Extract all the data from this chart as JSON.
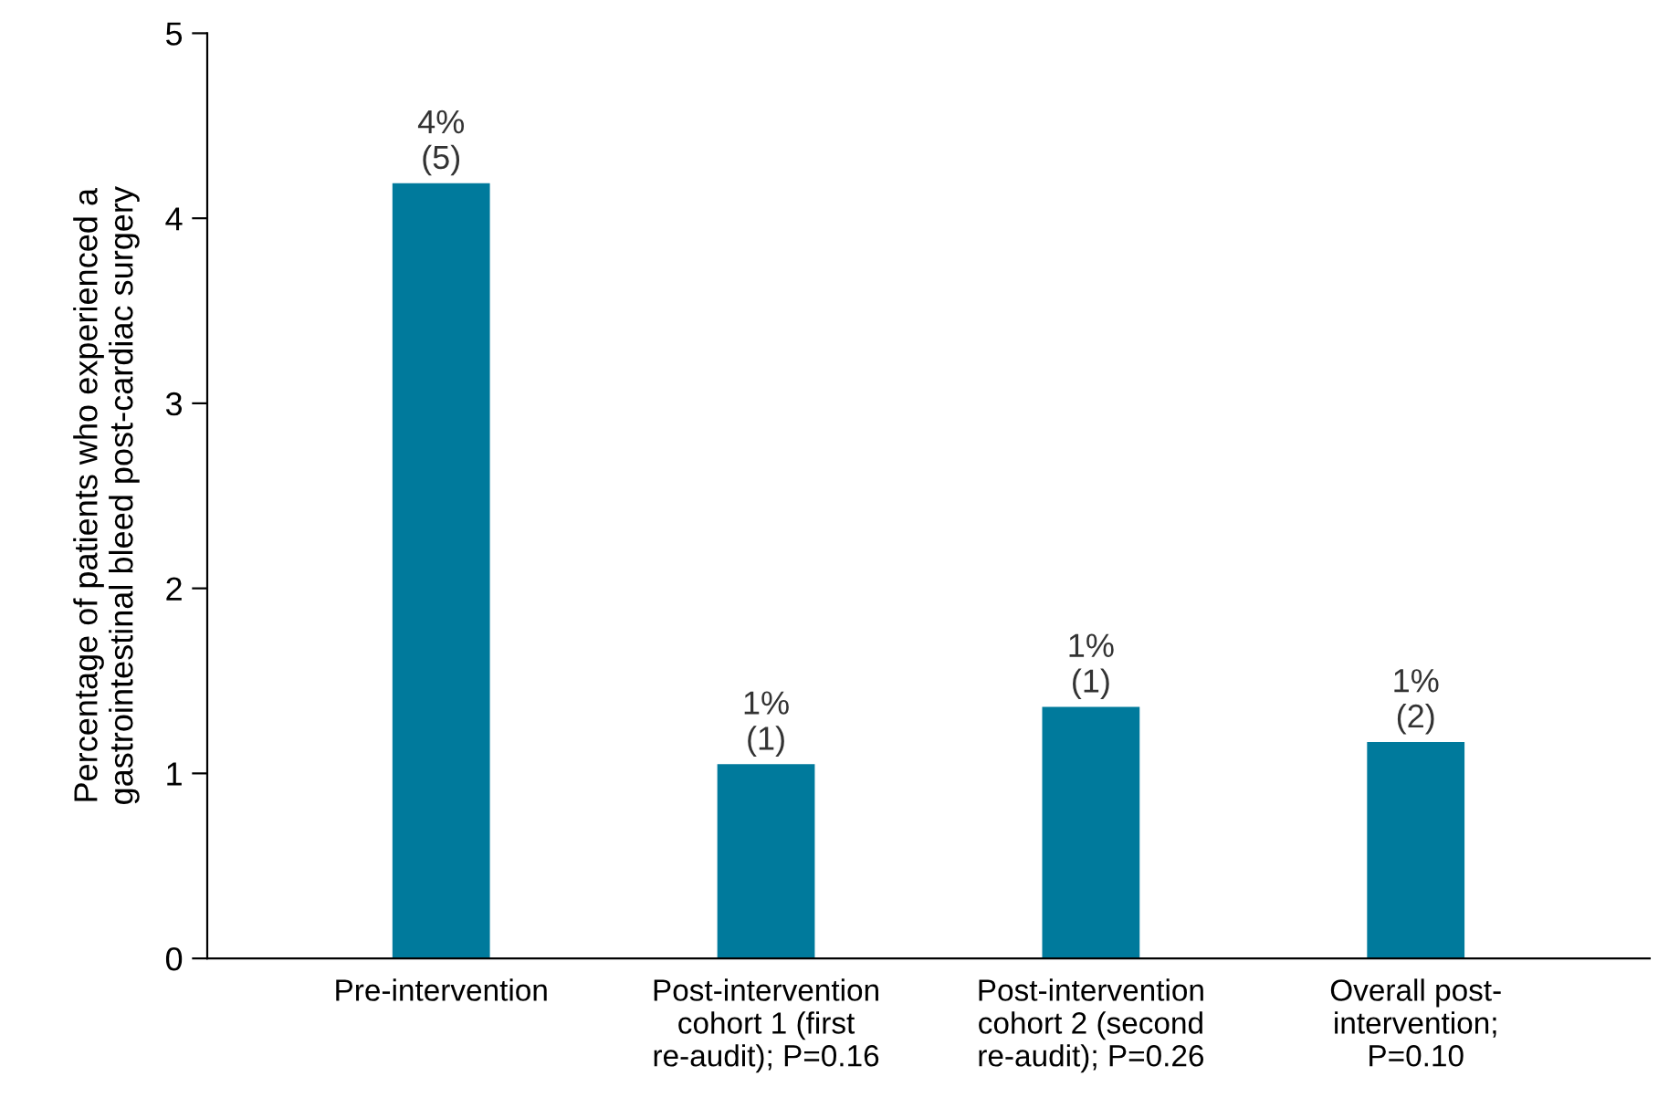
{
  "chart_data": {
    "type": "bar",
    "ylabel": "Percentage of patients who experienced a\ngastrointestinal bleed post-cardiac surgery",
    "categories": [
      "Pre-intervention",
      "Post-intervention\ncohort 1 (first\nre-audit); P=0.16",
      "Post-intervention\ncohort 2 (second\nre-audit); P=0.26",
      "Overall post-\nintervention;\nP=0.10"
    ],
    "values": [
      4.19,
      1.05,
      1.36,
      1.17
    ],
    "value_labels": [
      "4%\n(5)",
      "1%\n(1)",
      "1%\n(1)",
      "1%\n(2)"
    ],
    "color": "#007a9c",
    "ylim": [
      0,
      5
    ],
    "yticks": [
      0,
      1,
      2,
      3,
      4,
      5
    ],
    "grid": false,
    "legend": false
  }
}
